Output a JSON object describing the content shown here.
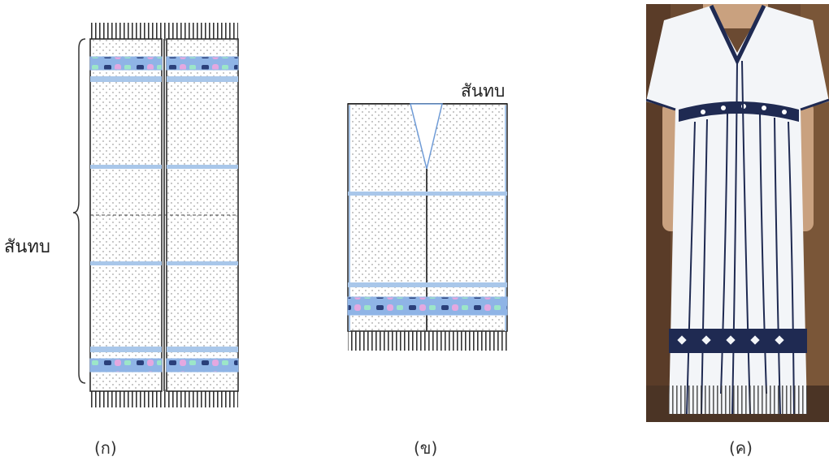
{
  "figure": {
    "panel_a": {
      "side_label": "สันทบ",
      "caption": "(ก)"
    },
    "panel_b": {
      "top_label": "สันทบ",
      "caption": "(ข)"
    },
    "panel_c": {
      "caption": "(ค)"
    }
  },
  "colors": {
    "band_light": "#a9c7ea",
    "band_dark": "#6f9bd6",
    "pattern_pink": "#e4a8e0",
    "pattern_green": "#9ce6c8",
    "pattern_navy": "#2a3f7a",
    "outline": "#222222",
    "fringe": "#333333",
    "garment_white": "#f3f5f8",
    "garment_embroidery": "#1f2a52",
    "background_wood": "#6b4a32"
  }
}
